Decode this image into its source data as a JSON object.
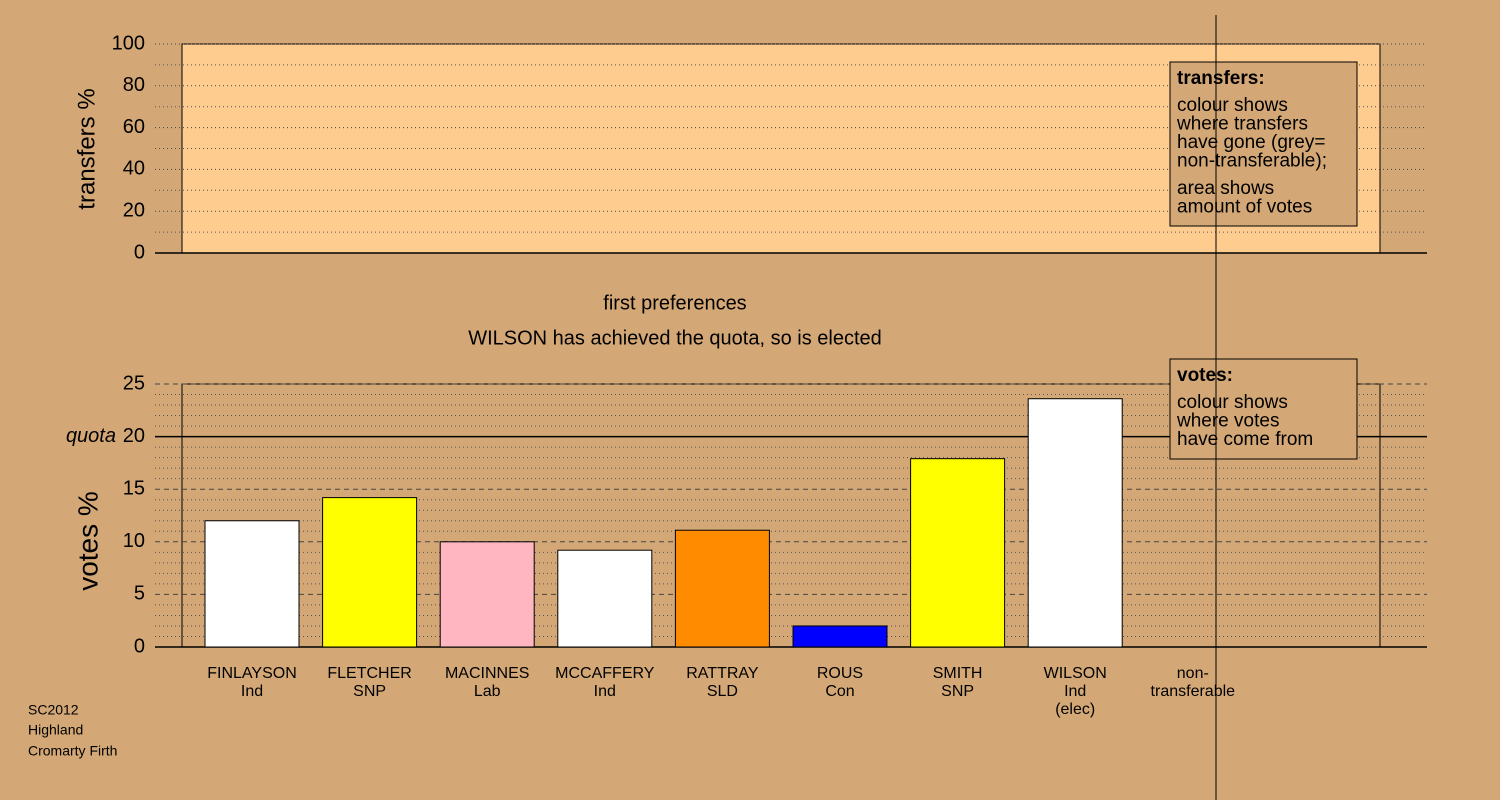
{
  "chart_data": [
    {
      "type": "bar",
      "ylabel": "transfers %",
      "ylim": [
        0,
        100
      ],
      "yticks": [
        0,
        20,
        40,
        60,
        80,
        100
      ],
      "note": {
        "title": "transfers:",
        "paragraphs": [
          [
            "colour shows",
            "where transfers",
            "have gone (grey=",
            "non-transferable);"
          ],
          [
            "area shows",
            "amount of votes"
          ]
        ]
      }
    },
    {
      "type": "bar",
      "title": "first preferences",
      "subtitle": "WILSON has achieved the quota, so is elected",
      "ylabel": "votes %",
      "ylim": [
        0,
        25
      ],
      "yticks": [
        0,
        5,
        10,
        15,
        20,
        25
      ],
      "quota": 20,
      "quota_label": "quota",
      "categories": [
        [
          "FINLAYSON",
          "Ind"
        ],
        [
          "FLETCHER",
          "SNP"
        ],
        [
          "MACINNES",
          "Lab"
        ],
        [
          "MCCAFFERY",
          "Ind"
        ],
        [
          "RATTRAY",
          "SLD"
        ],
        [
          "ROUS",
          "Con"
        ],
        [
          "SMITH",
          "SNP"
        ],
        [
          "WILSON",
          "Ind",
          "(elec)"
        ],
        [
          "non-",
          "transferable"
        ]
      ],
      "values": [
        12.0,
        14.2,
        10.0,
        9.2,
        11.1,
        2.0,
        17.9,
        23.6,
        null
      ],
      "colors": [
        "#ffffff",
        "#ffff00",
        "#ffb6c1",
        "#ffffff",
        "#ff8c00",
        "#0000ff",
        "#ffff00",
        "#ffffff",
        null
      ],
      "note": {
        "title": "votes:",
        "paragraphs": [
          [
            "colour shows",
            "where votes",
            "have come from"
          ]
        ]
      }
    }
  ],
  "footer": [
    "SC2012",
    "Highland",
    "Cromarty Firth"
  ]
}
